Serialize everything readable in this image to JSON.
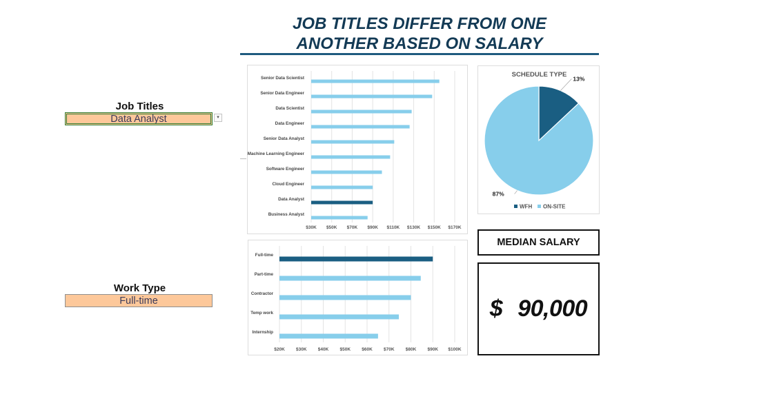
{
  "dashboard": {
    "title_line1": "JOB TITLES DIFFER FROM ONE",
    "title_line2": "ANOTHER BASED ON SALARY"
  },
  "filters": {
    "job_titles": {
      "label": "Job Titles",
      "value": "Data Analyst"
    },
    "work_type": {
      "label": "Work Type",
      "value": "Full-time"
    }
  },
  "median": {
    "label": "MEDIAN SALARY",
    "currency": "$",
    "value": "90,000"
  },
  "colors": {
    "highlight": "#1a5e82",
    "bar": "#87ceeb",
    "grid": "#e3e3e3",
    "title": "#133a55"
  },
  "chart_data": [
    {
      "type": "bar",
      "orientation": "horizontal",
      "categories": [
        "Senior Data Scientist",
        "Senior Data Engineer",
        "Data Scientist",
        "Data Engineer",
        "Senior Data Analyst",
        "Machine Learning Engineer",
        "Software Engineer",
        "Cloud Engineer",
        "Data Analyst",
        "Business Analyst"
      ],
      "values": [
        155000,
        148000,
        128000,
        126000,
        111000,
        107000,
        99000,
        90000,
        90000,
        85000
      ],
      "highlight": "Data Analyst",
      "xlim": [
        30000,
        170000
      ],
      "xticks": [
        "$30K",
        "$50K",
        "$70K",
        "$90K",
        "$110K",
        "$130K",
        "$150K",
        "$170K"
      ],
      "grid": true
    },
    {
      "type": "pie",
      "title": "SCHEDULE TYPE",
      "slices": [
        {
          "label": "WFH",
          "value": 13,
          "display": "13%"
        },
        {
          "label": "ON-SITE",
          "value": 87,
          "display": "87%"
        }
      ],
      "legend": "bottom"
    },
    {
      "type": "bar",
      "orientation": "horizontal",
      "categories": [
        "Full-time",
        "Part-time",
        "Contractor",
        "Temp work",
        "Internship"
      ],
      "values": [
        90000,
        84500,
        80000,
        74500,
        65000
      ],
      "highlight": "Full-time",
      "xlim": [
        20000,
        100000
      ],
      "xticks": [
        "$20K",
        "$30K",
        "$40K",
        "$50K",
        "$60K",
        "$70K",
        "$80K",
        "$90K",
        "$100K"
      ],
      "grid": true
    }
  ]
}
